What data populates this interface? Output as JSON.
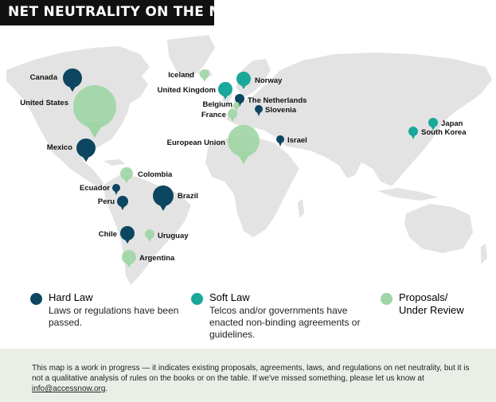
{
  "title": "NET NEUTRALITY ON THE MOVE",
  "colors": {
    "hard": "#0d4660",
    "soft": "#1aa89a",
    "proposal": "#9fd5a4",
    "land": "#e3e3e3",
    "water": "#ffffff",
    "footer_bg": "#e9efe7"
  },
  "map_data": {
    "type": "proportional-symbol-map",
    "markers": [
      {
        "label": "Canada",
        "status": "hard"
      },
      {
        "label": "United States",
        "status": "proposal"
      },
      {
        "label": "Mexico",
        "status": "hard"
      },
      {
        "label": "Colombia",
        "status": "proposal"
      },
      {
        "label": "Ecuador",
        "status": "hard"
      },
      {
        "label": "Peru",
        "status": "hard"
      },
      {
        "label": "Brazil",
        "status": "hard"
      },
      {
        "label": "Chile",
        "status": "hard"
      },
      {
        "label": "Uruguay",
        "status": "proposal"
      },
      {
        "label": "Argentina",
        "status": "proposal"
      },
      {
        "label": "Iceland",
        "status": "proposal"
      },
      {
        "label": "Norway",
        "status": "soft"
      },
      {
        "label": "United Kingdom",
        "status": "soft"
      },
      {
        "label": "The Netherlands",
        "status": "hard"
      },
      {
        "label": "Belgium",
        "status": "proposal"
      },
      {
        "label": "Slovenia",
        "status": "hard"
      },
      {
        "label": "France",
        "status": "proposal"
      },
      {
        "label": "European Union",
        "status": "proposal"
      },
      {
        "label": "Israel",
        "status": "hard"
      },
      {
        "label": "Japan",
        "status": "soft"
      },
      {
        "label": "South Korea",
        "status": "soft"
      }
    ]
  },
  "legend": [
    {
      "status": "hard",
      "title": "Hard Law",
      "desc": "Laws or regulations have been passed."
    },
    {
      "status": "soft",
      "title": "Soft Law",
      "desc": "Telcos and/or governments have enacted non-binding agreements or guidelines."
    },
    {
      "status": "proposal",
      "title": "Proposals/ Under Review",
      "desc": ""
    }
  ],
  "footer": {
    "text": "This map is a work in progress — it indicates existing proposals, agreements, laws, and regulations on net neutrality, but it is not a qualitative analysis of rules on the books or on the table. If we've missed something, please let us know at ",
    "link": "info@accessnow.org",
    "after": "."
  }
}
